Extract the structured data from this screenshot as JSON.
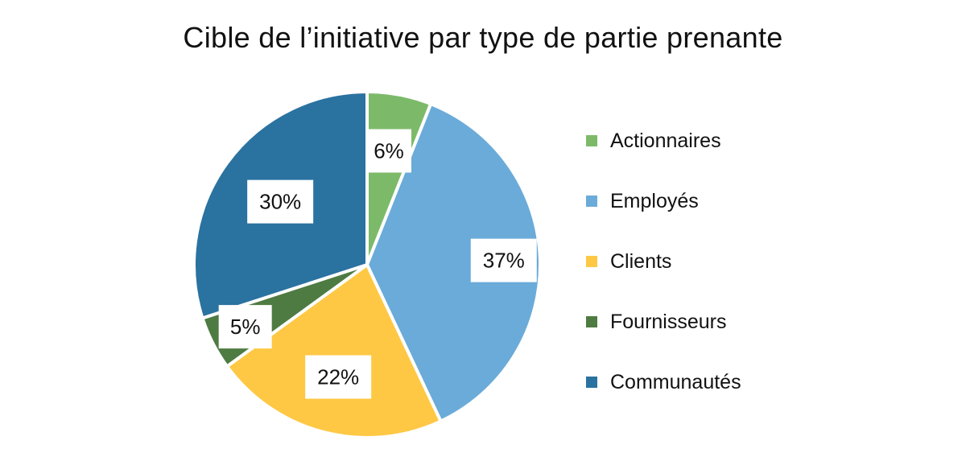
{
  "chart_data": {
    "type": "pie",
    "title": "Cible de l’initiative par type de partie prenante",
    "legend_position": "right",
    "slices": [
      {
        "label": "Actionnaires",
        "value": 6,
        "display": "6%",
        "color": "#7cba6a"
      },
      {
        "label": "Employés",
        "value": 37,
        "display": "37%",
        "color": "#6aabd9"
      },
      {
        "label": "Clients",
        "value": 22,
        "display": "22%",
        "color": "#fec844"
      },
      {
        "label": "Fournisseurs",
        "value": 5,
        "display": "5%",
        "color": "#4e7b42"
      },
      {
        "label": "Communautés",
        "value": 30,
        "display": "30%",
        "color": "#2a72a0"
      }
    ]
  }
}
